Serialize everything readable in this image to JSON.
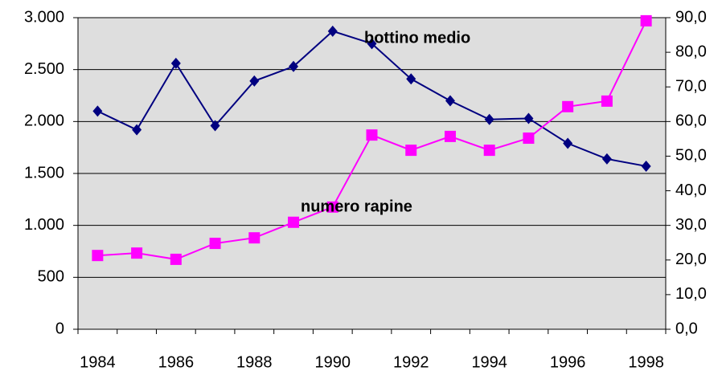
{
  "chart_data": {
    "type": "line",
    "categories": [
      "1984",
      null,
      "1986",
      null,
      "1988",
      null,
      "1990",
      null,
      "1992",
      null,
      "1994",
      null,
      "1996",
      null,
      "1998"
    ],
    "series": [
      {
        "name": "bottino medio",
        "color": "#000080",
        "marker": "diamond",
        "values": [
          2100,
          1920,
          2560,
          1960,
          2390,
          2530,
          2870,
          2750,
          2410,
          2200,
          2020,
          2030,
          1790,
          1640,
          1570
        ]
      },
      {
        "name": "numero rapine",
        "color": "#ff00ff",
        "marker": "square",
        "axis": "y2",
        "values": [
          21.3,
          22.0,
          20.2,
          24.8,
          26.4,
          30.9,
          35.3,
          56.1,
          51.7,
          55.7,
          51.7,
          55.2,
          64.3,
          65.9,
          89.1
        ]
      }
    ],
    "ylim": [
      0,
      3000
    ],
    "yticks": [
      0,
      500,
      {
        "value": 1000,
        "label": "1.000"
      },
      {
        "value": 1500,
        "label": "1.500"
      },
      {
        "value": 2000,
        "label": "2.000"
      },
      {
        "value": 2500,
        "label": "2.500"
      },
      {
        "value": 3000,
        "label": "3.000"
      }
    ],
    "y2lim": [
      0,
      90
    ],
    "y2ticks": [
      {
        "value": 0,
        "label": "0,0"
      },
      {
        "value": 10,
        "label": "10,0"
      },
      {
        "value": 20,
        "label": "20,0"
      },
      {
        "value": 30,
        "label": "30,0"
      },
      {
        "value": 40,
        "label": "40,0"
      },
      {
        "value": 50,
        "label": "50,0"
      },
      {
        "value": 60,
        "label": "60,0"
      },
      {
        "value": 70,
        "label": "70,0"
      },
      {
        "value": 80,
        "label": "80,0"
      },
      {
        "value": 90,
        "label": "90,0"
      }
    ],
    "grid": true,
    "plot_background": "#dedede"
  }
}
